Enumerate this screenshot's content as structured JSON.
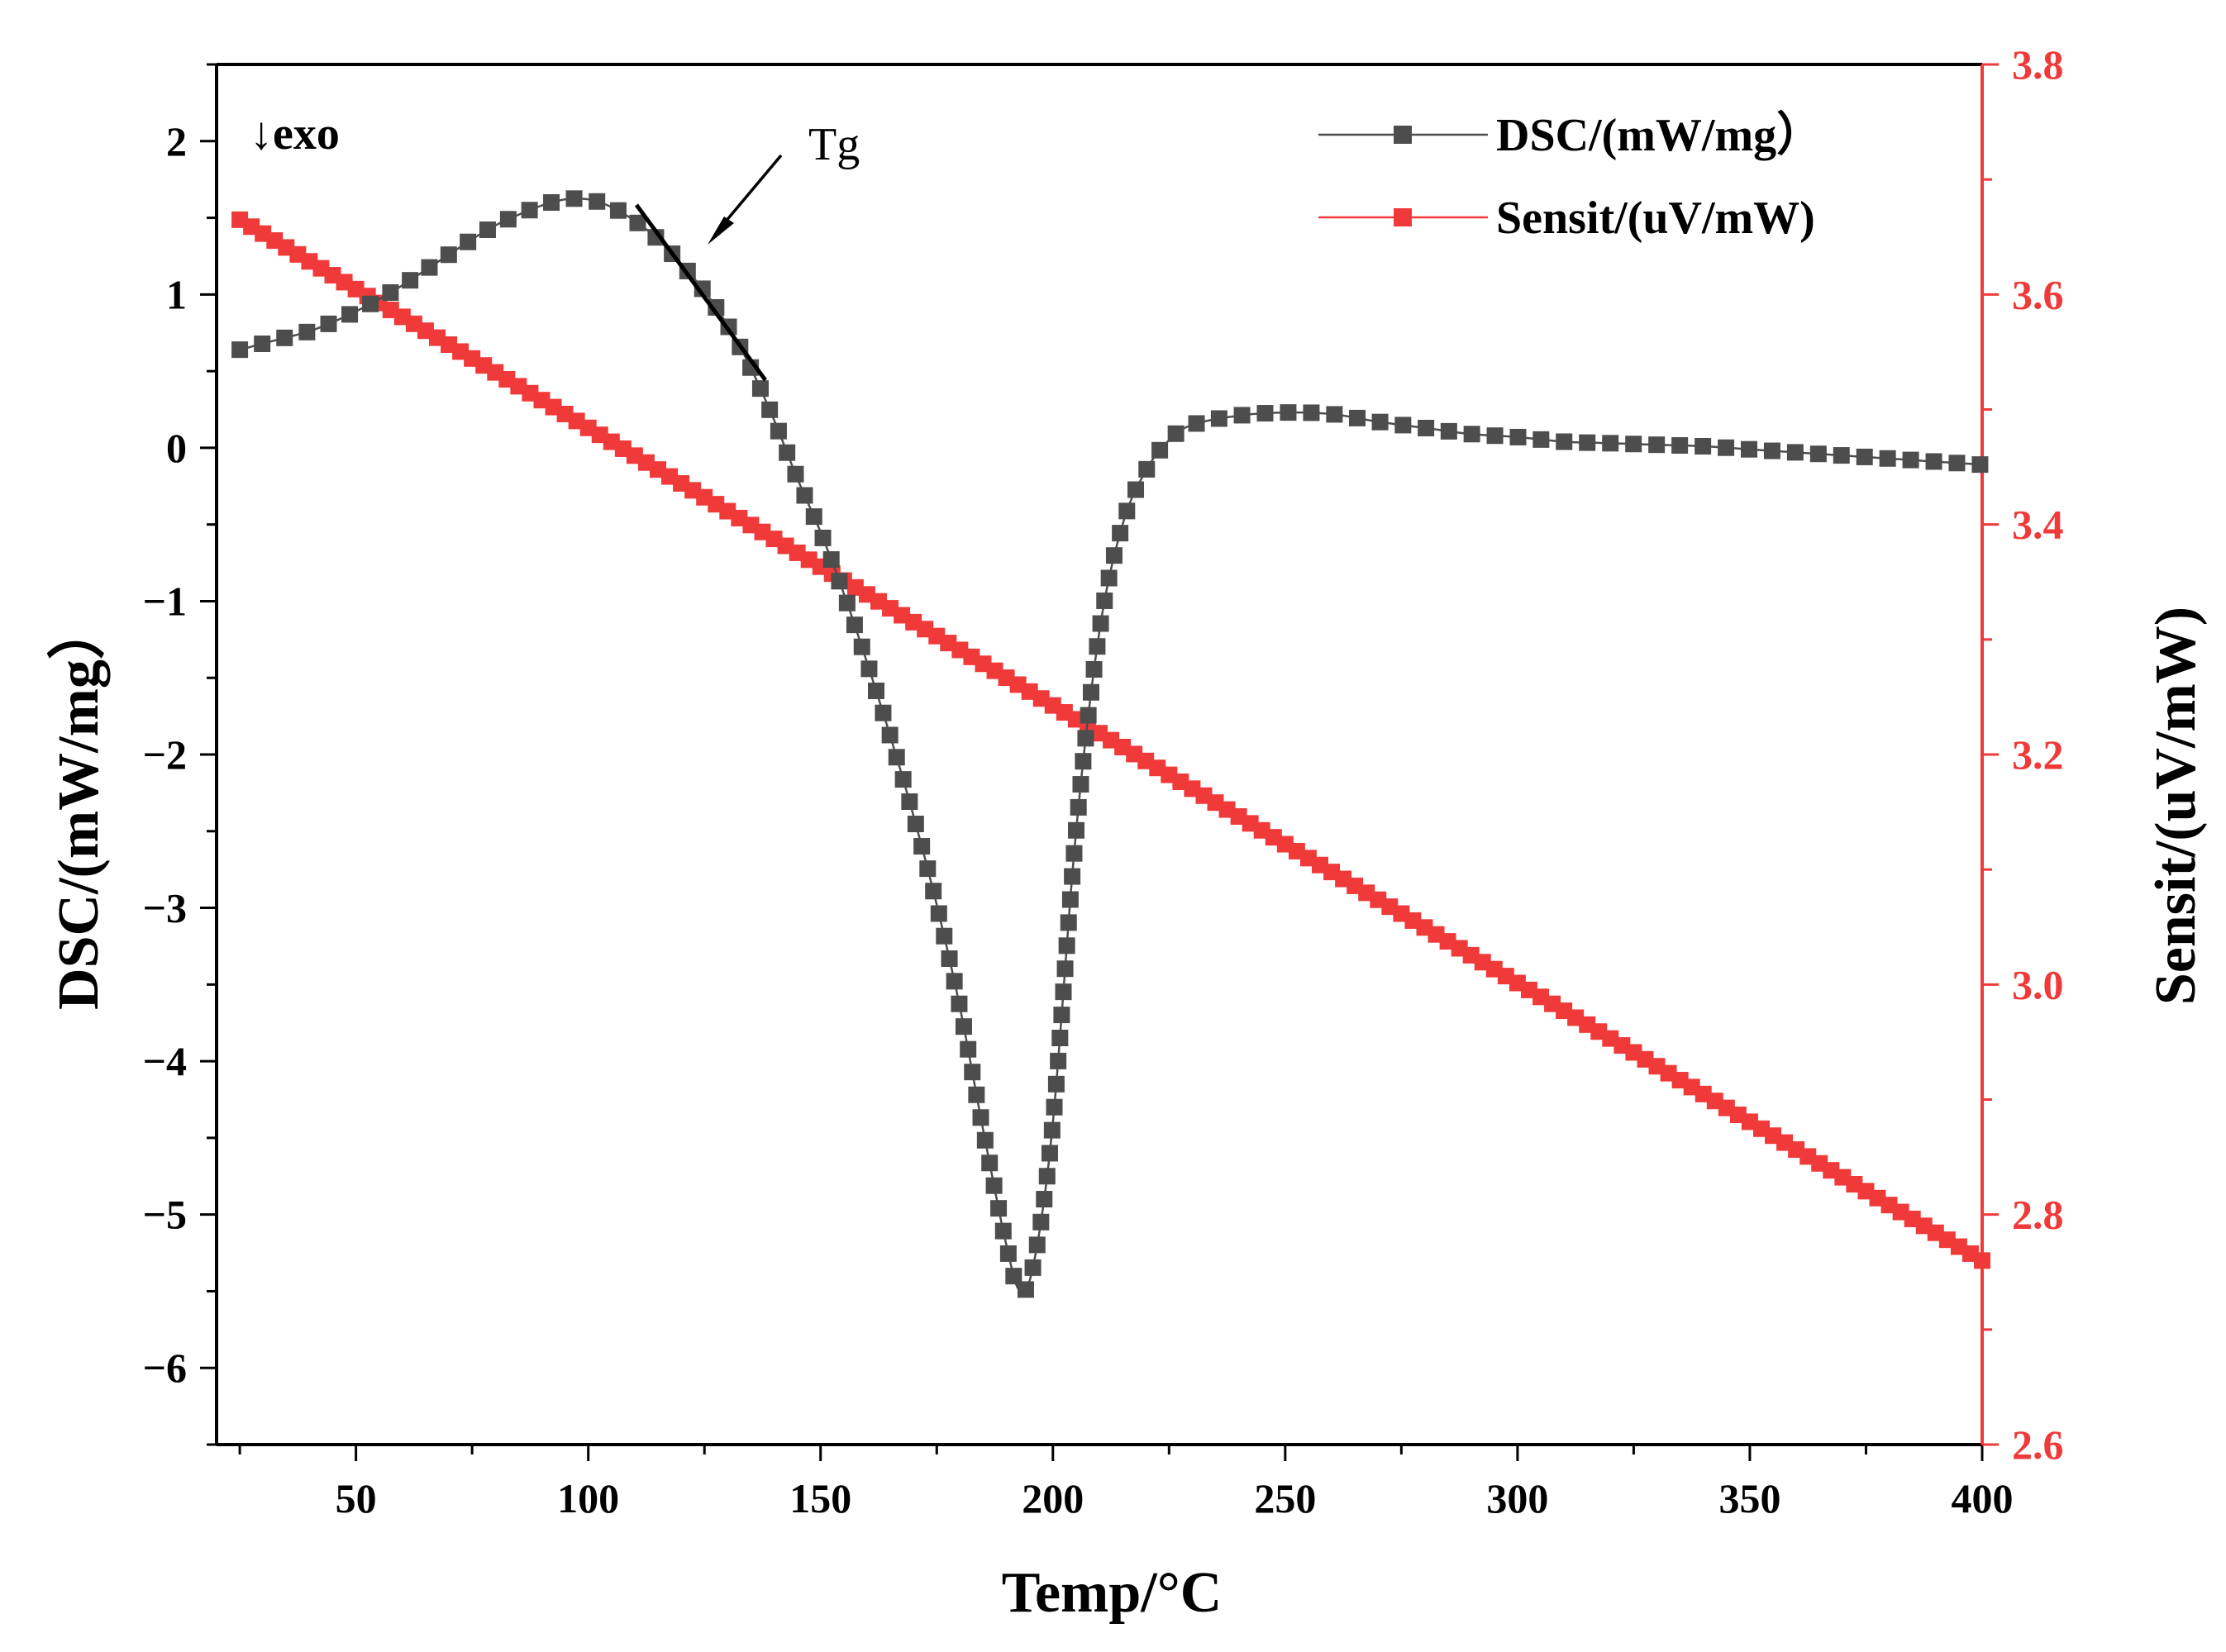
{
  "chart_data": {
    "type": "scatter",
    "title": "",
    "xlabel": "Temp/°C",
    "ylabel_left": "DSC/(mW/mg）",
    "ylabel_right": "Sensit/(uV/mW)",
    "xlim": [
      20,
      400
    ],
    "ylim_left": [
      -6.5,
      2.5
    ],
    "ylim_right": [
      2.6,
      3.8
    ],
    "x_ticks": [
      "50",
      "100",
      "150",
      "200",
      "250",
      "300",
      "350",
      "400"
    ],
    "y_ticks_left": [
      "2",
      "1",
      "0",
      "−1",
      "−2",
      "−3",
      "−4",
      "−5",
      "−6"
    ],
    "y_ticks_right": [
      "3.8",
      "3.6",
      "3.4",
      "3.2",
      "3.0",
      "2.8",
      "2.6"
    ],
    "legend": [
      "DSC/(mW/mg）",
      "Sensit/(uV/mW)"
    ],
    "legend_position": "top-right",
    "annotations": {
      "exo": "↓exo",
      "tg": "Tg"
    },
    "colors": {
      "dsc": "#4d4d4d",
      "sensit": "#f03a3a",
      "right_axis": "#f03a3a",
      "axis": "#000000"
    },
    "series": [
      {
        "name": "DSC/(mW/mg）",
        "points": [
          [
            25,
            0.64
          ],
          [
            30,
            0.68
          ],
          [
            35,
            0.72
          ],
          [
            40,
            0.76
          ],
          [
            45,
            0.82
          ],
          [
            50,
            0.89
          ],
          [
            55,
            0.97
          ],
          [
            60,
            1.06
          ],
          [
            65,
            1.16
          ],
          [
            70,
            1.26
          ],
          [
            75,
            1.36
          ],
          [
            80,
            1.45
          ],
          [
            85,
            1.52
          ],
          [
            90,
            1.58
          ],
          [
            95,
            1.62
          ],
          [
            100,
            1.62
          ],
          [
            105,
            1.57
          ],
          [
            110,
            1.48
          ],
          [
            115,
            1.36
          ],
          [
            120,
            1.2
          ],
          [
            125,
            1.02
          ],
          [
            130,
            0.8
          ],
          [
            135,
            0.52
          ],
          [
            140,
            0.18
          ],
          [
            145,
            -0.2
          ],
          [
            150,
            -0.55
          ],
          [
            155,
            -0.95
          ],
          [
            160,
            -1.4
          ],
          [
            165,
            -1.88
          ],
          [
            170,
            -2.4
          ],
          [
            175,
            -2.98
          ],
          [
            180,
            -3.65
          ],
          [
            185,
            -4.45
          ],
          [
            190,
            -5.2
          ],
          [
            193,
            -5.5
          ],
          [
            196,
            -5.3
          ],
          [
            200,
            -4.4
          ],
          [
            205,
            -2.5
          ],
          [
            210,
            -1.2
          ],
          [
            215,
            -0.5
          ],
          [
            220,
            -0.15
          ],
          [
            225,
            0.05
          ],
          [
            230,
            0.15
          ],
          [
            240,
            0.21
          ],
          [
            250,
            0.23
          ],
          [
            260,
            0.22
          ],
          [
            270,
            0.17
          ],
          [
            280,
            0.13
          ],
          [
            290,
            0.09
          ],
          [
            300,
            0.07
          ],
          [
            310,
            0.04
          ],
          [
            320,
            0.03
          ],
          [
            330,
            0.02
          ],
          [
            340,
            0.01
          ],
          [
            350,
            -0.01
          ],
          [
            360,
            -0.03
          ],
          [
            370,
            -0.05
          ],
          [
            380,
            -0.07
          ],
          [
            390,
            -0.09
          ],
          [
            400,
            -0.11
          ]
        ]
      },
      {
        "name": "Sensit/(uV/mW)",
        "x_start": 25,
        "x_end": 400,
        "y_start": 3.665,
        "y_end": 2.76
      }
    ]
  }
}
